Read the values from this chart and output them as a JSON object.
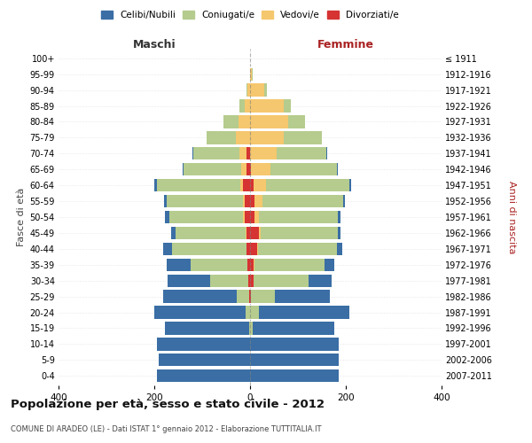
{
  "age_groups": [
    "0-4",
    "5-9",
    "10-14",
    "15-19",
    "20-24",
    "25-29",
    "30-34",
    "35-39",
    "40-44",
    "45-49",
    "50-54",
    "55-59",
    "60-64",
    "65-69",
    "70-74",
    "75-79",
    "80-84",
    "85-89",
    "90-94",
    "95-99",
    "100+"
  ],
  "birth_years": [
    "2007-2011",
    "2002-2006",
    "1997-2001",
    "1992-1996",
    "1987-1991",
    "1982-1986",
    "1977-1981",
    "1972-1976",
    "1967-1971",
    "1962-1966",
    "1957-1961",
    "1952-1956",
    "1947-1951",
    "1942-1946",
    "1937-1941",
    "1932-1936",
    "1927-1931",
    "1922-1926",
    "1917-1921",
    "1912-1916",
    "≤ 1911"
  ],
  "male": {
    "celibi": [
      195,
      190,
      195,
      175,
      190,
      155,
      90,
      50,
      18,
      10,
      8,
      5,
      5,
      2,
      2,
      0,
      0,
      0,
      0,
      0,
      0
    ],
    "coniugati": [
      0,
      0,
      0,
      2,
      10,
      25,
      80,
      120,
      155,
      145,
      155,
      160,
      175,
      120,
      95,
      60,
      30,
      10,
      3,
      0,
      0
    ],
    "vedovi": [
      0,
      0,
      0,
      0,
      0,
      0,
      0,
      0,
      0,
      2,
      2,
      3,
      5,
      10,
      15,
      30,
      25,
      12,
      5,
      0,
      0
    ],
    "divorziati": [
      0,
      0,
      0,
      0,
      0,
      2,
      3,
      5,
      8,
      8,
      12,
      12,
      15,
      8,
      8,
      0,
      0,
      0,
      0,
      0,
      0
    ]
  },
  "female": {
    "nubili": [
      185,
      185,
      185,
      170,
      190,
      115,
      48,
      20,
      10,
      5,
      5,
      3,
      3,
      2,
      2,
      0,
      0,
      0,
      0,
      0,
      0
    ],
    "coniugate": [
      0,
      0,
      0,
      5,
      18,
      50,
      115,
      145,
      165,
      160,
      165,
      170,
      175,
      140,
      105,
      80,
      35,
      15,
      5,
      2,
      0
    ],
    "vedove": [
      0,
      0,
      0,
      0,
      0,
      0,
      0,
      2,
      2,
      5,
      8,
      15,
      25,
      40,
      55,
      70,
      80,
      70,
      30,
      3,
      0
    ],
    "divorziate": [
      0,
      0,
      0,
      0,
      0,
      2,
      8,
      8,
      15,
      18,
      10,
      10,
      8,
      2,
      0,
      0,
      0,
      0,
      0,
      0,
      0
    ]
  },
  "colors": {
    "celibi": "#3a6ea5",
    "coniugati": "#b5cc8e",
    "vedovi": "#f5c76e",
    "divorziati": "#d63333"
  },
  "title": "Popolazione per età, sesso e stato civile - 2012",
  "subtitle": "COMUNE DI ARADEO (LE) - Dati ISTAT 1° gennaio 2012 - Elaborazione TUTTITALIA.IT",
  "xlabel_left": "Maschi",
  "xlabel_right": "Femmine",
  "ylabel_left": "Fasce di età",
  "ylabel_right": "Anni di nascita",
  "xlim": 400,
  "legend_labels": [
    "Celibi/Nubili",
    "Coniugati/e",
    "Vedovi/e",
    "Divorziati/e"
  ],
  "background_color": "#ffffff",
  "bar_height": 0.8
}
